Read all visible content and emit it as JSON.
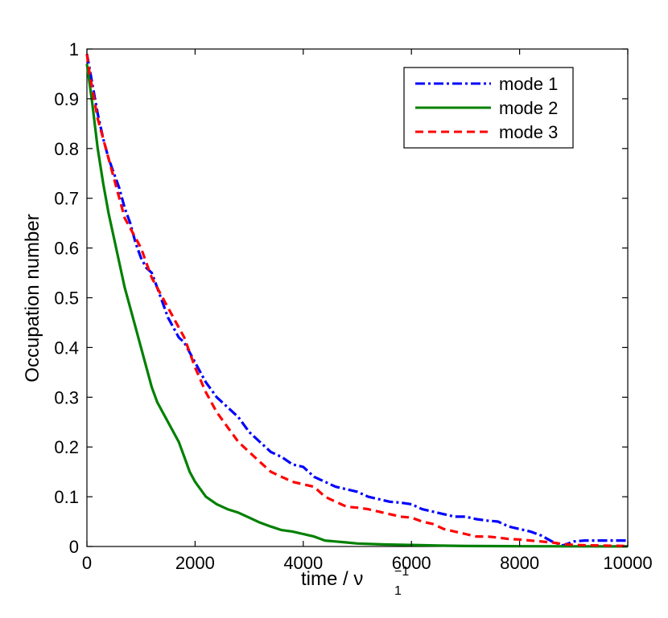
{
  "chart_data": {
    "type": "line",
    "title": "",
    "xlabel": "time / ν",
    "xlabel_super": "−1",
    "xlabel_sub": "1",
    "ylabel": "Occupation number",
    "xlim": [
      0,
      10000
    ],
    "ylim": [
      0,
      1
    ],
    "grid": false,
    "legend_position": "top-right",
    "x_ticks": [
      0,
      2000,
      4000,
      6000,
      8000,
      10000
    ],
    "x_tick_labels": [
      "0",
      "2000",
      "4000",
      "6000",
      "8000",
      "10000"
    ],
    "y_ticks": [
      0,
      0.1,
      0.2,
      0.3,
      0.4,
      0.5,
      0.6,
      0.7,
      0.8,
      0.9,
      1
    ],
    "y_tick_labels": [
      "0",
      "0.1",
      "0.2",
      "0.3",
      "0.4",
      "0.5",
      "0.6",
      "0.7",
      "0.8",
      "0.9",
      "1"
    ],
    "series": [
      {
        "name": "mode 1",
        "color": "#0000ff",
        "style": "dashdot",
        "x": [
          0,
          50,
          100,
          200,
          300,
          400,
          500,
          600,
          700,
          800,
          900,
          1000,
          1100,
          1200,
          1300,
          1400,
          1500,
          1600,
          1700,
          1800,
          1900,
          2000,
          2200,
          2400,
          2600,
          2800,
          3000,
          3200,
          3400,
          3600,
          3800,
          4000,
          4200,
          4400,
          4600,
          4800,
          5000,
          5200,
          5400,
          5600,
          5800,
          6000,
          6200,
          6400,
          6600,
          6800,
          7000,
          7200,
          7400,
          7600,
          7800,
          8000,
          8200,
          8400,
          8600,
          8800,
          9000,
          9200,
          9400,
          9600,
          9800,
          10000
        ],
        "y": [
          0.99,
          0.96,
          0.93,
          0.87,
          0.82,
          0.78,
          0.75,
          0.72,
          0.68,
          0.65,
          0.61,
          0.58,
          0.56,
          0.55,
          0.52,
          0.49,
          0.46,
          0.44,
          0.42,
          0.41,
          0.39,
          0.37,
          0.33,
          0.3,
          0.28,
          0.26,
          0.23,
          0.21,
          0.19,
          0.18,
          0.165,
          0.16,
          0.14,
          0.13,
          0.12,
          0.115,
          0.11,
          0.1,
          0.095,
          0.09,
          0.088,
          0.085,
          0.075,
          0.07,
          0.065,
          0.06,
          0.06,
          0.055,
          0.052,
          0.05,
          0.04,
          0.035,
          0.03,
          0.022,
          0.01,
          0.002,
          0.01,
          0.012,
          0.012,
          0.012,
          0.012,
          0.012
        ]
      },
      {
        "name": "mode 2",
        "color": "#008000",
        "style": "solid",
        "x": [
          0,
          50,
          100,
          200,
          300,
          400,
          500,
          600,
          700,
          800,
          900,
          1000,
          1100,
          1200,
          1300,
          1400,
          1500,
          1600,
          1700,
          1800,
          1900,
          2000,
          2200,
          2400,
          2600,
          2800,
          3000,
          3200,
          3400,
          3600,
          3800,
          4000,
          4200,
          4400,
          4600,
          4800,
          5000,
          5500,
          6000,
          6500,
          7000,
          8000,
          9000,
          10000
        ],
        "y": [
          0.97,
          0.93,
          0.89,
          0.8,
          0.73,
          0.67,
          0.62,
          0.57,
          0.52,
          0.48,
          0.44,
          0.4,
          0.36,
          0.32,
          0.29,
          0.27,
          0.25,
          0.23,
          0.21,
          0.18,
          0.15,
          0.13,
          0.1,
          0.085,
          0.075,
          0.068,
          0.058,
          0.048,
          0.04,
          0.033,
          0.03,
          0.025,
          0.02,
          0.012,
          0.01,
          0.008,
          0.006,
          0.004,
          0.003,
          0.002,
          0.001,
          0.0005,
          0.0003,
          0.0002
        ]
      },
      {
        "name": "mode 3",
        "color": "#ff0000",
        "style": "dashed",
        "x": [
          0,
          50,
          100,
          200,
          300,
          400,
          500,
          600,
          700,
          800,
          900,
          1000,
          1100,
          1200,
          1300,
          1400,
          1500,
          1600,
          1700,
          1800,
          1900,
          2000,
          2200,
          2400,
          2600,
          2800,
          3000,
          3200,
          3400,
          3600,
          3800,
          4000,
          4200,
          4400,
          4600,
          4800,
          5000,
          5200,
          5400,
          5600,
          5800,
          6000,
          6200,
          6400,
          6600,
          6800,
          7000,
          7200,
          7400,
          7600,
          7800,
          8000,
          8200,
          8400,
          8600,
          8800,
          9000,
          9500,
          10000
        ],
        "y": [
          0.99,
          0.95,
          0.92,
          0.86,
          0.82,
          0.78,
          0.74,
          0.7,
          0.66,
          0.64,
          0.62,
          0.6,
          0.57,
          0.54,
          0.52,
          0.5,
          0.48,
          0.46,
          0.44,
          0.42,
          0.39,
          0.36,
          0.31,
          0.27,
          0.24,
          0.21,
          0.19,
          0.17,
          0.15,
          0.14,
          0.13,
          0.125,
          0.12,
          0.1,
          0.09,
          0.08,
          0.078,
          0.075,
          0.07,
          0.065,
          0.06,
          0.058,
          0.05,
          0.045,
          0.035,
          0.03,
          0.025,
          0.02,
          0.02,
          0.018,
          0.015,
          0.014,
          0.012,
          0.01,
          0.008,
          0.005,
          0.003,
          0.002,
          0.001
        ]
      }
    ]
  }
}
